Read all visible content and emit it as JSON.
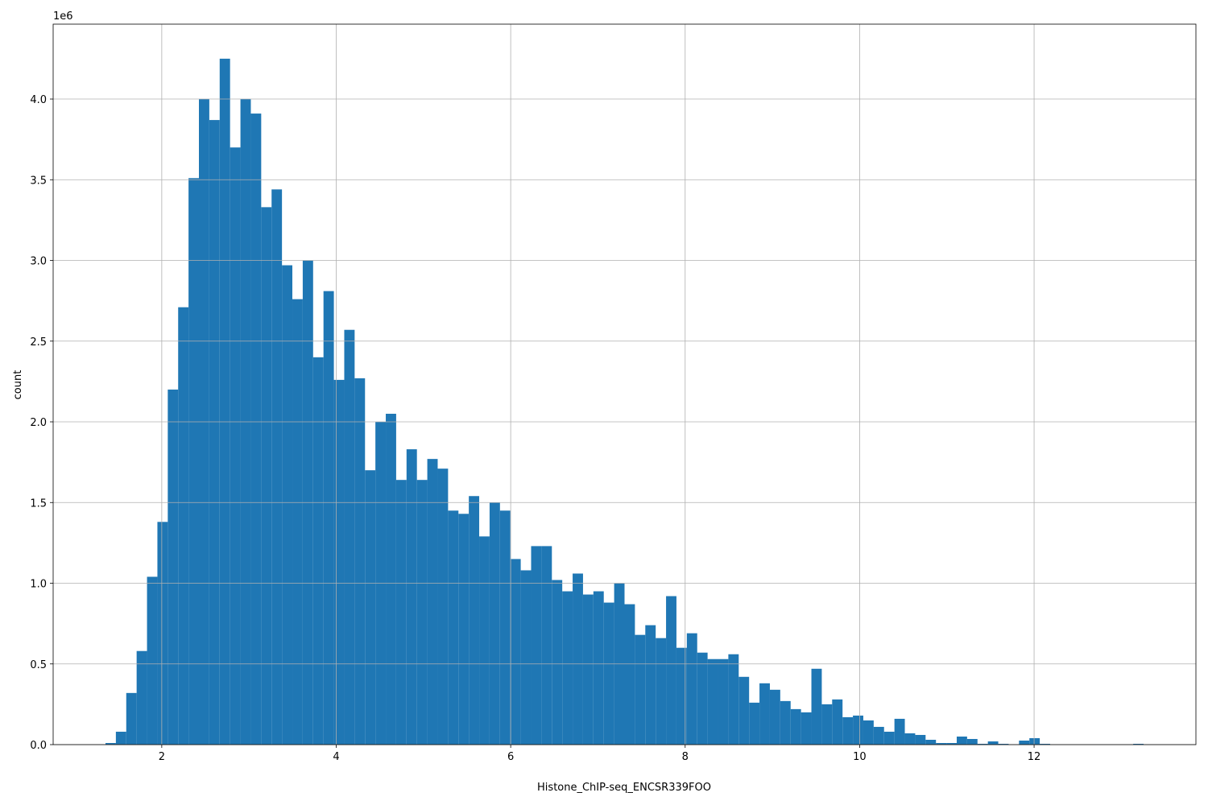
{
  "chart_data": {
    "type": "histogram",
    "x_label": "Histone_ChIP-seq_ENCSR339FOO",
    "y_label": "count",
    "y_offset_label": "1e6",
    "color": "#1f77b4",
    "grid": true,
    "bins": [
      1.355,
      1.474,
      1.593,
      1.712,
      1.831,
      1.95,
      2.069,
      2.188,
      2.307,
      2.426,
      2.545,
      2.664,
      2.783,
      2.902,
      3.021,
      3.14,
      3.259,
      3.378,
      3.497,
      3.616,
      3.735,
      3.854,
      3.973,
      4.092,
      4.211,
      4.33,
      4.449,
      4.568,
      4.687,
      4.806,
      4.925,
      5.044,
      5.163,
      5.282,
      5.401,
      5.52,
      5.639,
      5.758,
      5.877,
      5.996,
      6.115,
      6.234,
      6.353,
      6.472,
      6.591,
      6.71,
      6.829,
      6.948,
      7.067,
      7.186,
      7.305,
      7.424,
      7.543,
      7.662,
      7.781,
      7.9,
      8.019,
      8.138,
      8.257,
      8.376,
      8.495,
      8.614,
      8.733,
      8.852,
      8.971,
      9.09,
      9.209,
      9.328,
      9.447,
      9.566,
      9.685,
      9.804,
      9.923,
      10.042,
      10.161,
      10.28,
      10.399,
      10.518,
      10.637,
      10.756,
      10.875,
      10.994,
      11.113,
      11.232,
      11.351,
      11.47,
      11.589,
      11.708,
      11.827,
      11.946,
      12.065,
      12.184,
      12.303,
      12.422,
      12.541,
      12.66,
      12.779,
      12.898,
      13.017,
      13.136,
      13.255
    ],
    "values": [
      10000,
      80000,
      320000,
      580000,
      1040000,
      1380000,
      2200000,
      2710000,
      3510000,
      4000000,
      3870000,
      4250000,
      3700000,
      4000000,
      3910000,
      3330000,
      3440000,
      2970000,
      2760000,
      3000000,
      2400000,
      2810000,
      2260000,
      2570000,
      2270000,
      1700000,
      2000000,
      2050000,
      1640000,
      1830000,
      1640000,
      1770000,
      1710000,
      1450000,
      1430000,
      1540000,
      1290000,
      1500000,
      1450000,
      1150000,
      1080000,
      1230000,
      1230000,
      1020000,
      950000,
      1060000,
      930000,
      950000,
      880000,
      1000000,
      870000,
      680000,
      740000,
      660000,
      920000,
      600000,
      690000,
      570000,
      530000,
      530000,
      560000,
      420000,
      260000,
      380000,
      340000,
      270000,
      220000,
      200000,
      470000,
      250000,
      280000,
      170000,
      180000,
      150000,
      110000,
      80000,
      160000,
      70000,
      60000,
      30000,
      10000,
      10000,
      50000,
      35000,
      5000,
      20000,
      5000,
      0,
      25000,
      40000,
      5000,
      0,
      0,
      0,
      0,
      0,
      0,
      0,
      0,
      5000
    ],
    "xlim": [
      0.755,
      13.855
    ],
    "xticks": [
      2,
      4,
      6,
      8,
      10,
      12
    ],
    "ylim": [
      0,
      4464000
    ],
    "yticks": [
      {
        "value": 0,
        "label": "0.0"
      },
      {
        "value": 500000,
        "label": "0.5"
      },
      {
        "value": 1000000,
        "label": "1.0"
      },
      {
        "value": 1500000,
        "label": "1.5"
      },
      {
        "value": 2000000,
        "label": "2.0"
      },
      {
        "value": 2500000,
        "label": "2.5"
      },
      {
        "value": 3000000,
        "label": "3.0"
      },
      {
        "value": 3500000,
        "label": "3.5"
      },
      {
        "value": 4000000,
        "label": "4.0"
      }
    ]
  }
}
